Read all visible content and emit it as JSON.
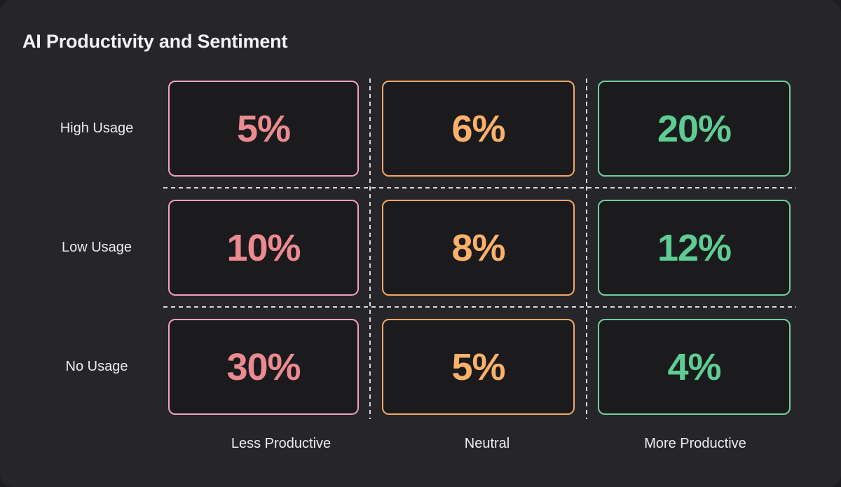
{
  "title": "AI Productivity and Sentiment",
  "theme": {
    "page_bg": "#1d1d20",
    "card_bg": "#26262a",
    "cell_bg": "#1b1b1e",
    "dash_color": "#d9d9db",
    "title_color": "#f3f3f5",
    "label_color": "#ebecee",
    "pink_border": "#f2a1bd",
    "pink_text": "#ec8a90",
    "orange_border": "#f3a862",
    "orange_text": "#fbb169",
    "green_border": "#6fce9c",
    "green_text": "#5ecc93"
  },
  "chart_data": {
    "type": "heatmap",
    "title": "AI Productivity and Sentiment",
    "rows": [
      "High Usage",
      "Low Usage",
      "No Usage"
    ],
    "columns": [
      "Less Productive",
      "Neutral",
      "More Productive"
    ],
    "values": [
      [
        5,
        6,
        20
      ],
      [
        10,
        8,
        12
      ],
      [
        30,
        5,
        4
      ]
    ],
    "display": [
      [
        "5%",
        "6%",
        "20%"
      ],
      [
        "10%",
        "8%",
        "12%"
      ],
      [
        "30%",
        "5%",
        "4%"
      ]
    ],
    "unit": "percent",
    "column_colors": [
      "#ec8a90",
      "#fbb169",
      "#5ecc93"
    ],
    "legend_position": "none",
    "grid": "dashed-separators"
  }
}
